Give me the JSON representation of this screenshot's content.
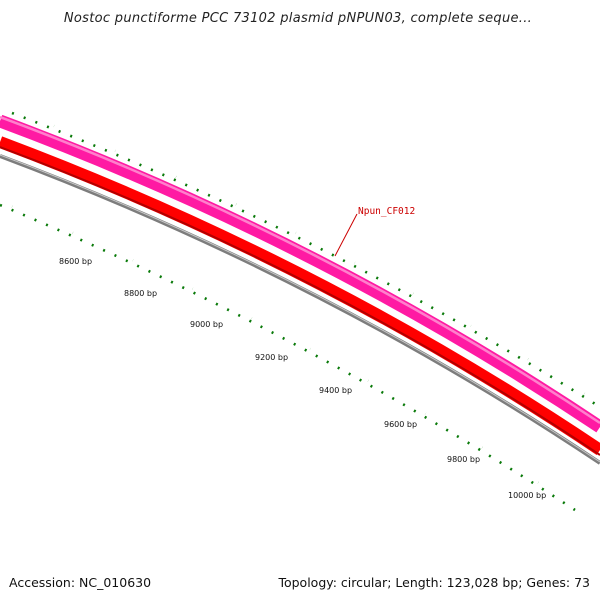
{
  "title": "Nostoc punctiforme PCC 73102 plasmid pNPUN03, complete seque...",
  "accession": "Accession: NC_010630",
  "topology": "Topology: circular; Length: 123,028 bp; Genes: 73",
  "gene_label": "Npun_CF012",
  "bp_labels": [
    "8600 bp",
    "8800 bp",
    "9000 bp",
    "9200 bp",
    "9400 bp",
    "9600 bp",
    "9800 bp",
    "10000 bp"
  ],
  "colors": {
    "magenta_track": "#ff1aa3",
    "magenta_highlight": "#ff80cc",
    "red_track": "#ff0000",
    "red_shadow": "#b30000",
    "gray_backbone": "#808080",
    "tick_green": "#0a7a0a",
    "label_red": "#cc0000"
  }
}
